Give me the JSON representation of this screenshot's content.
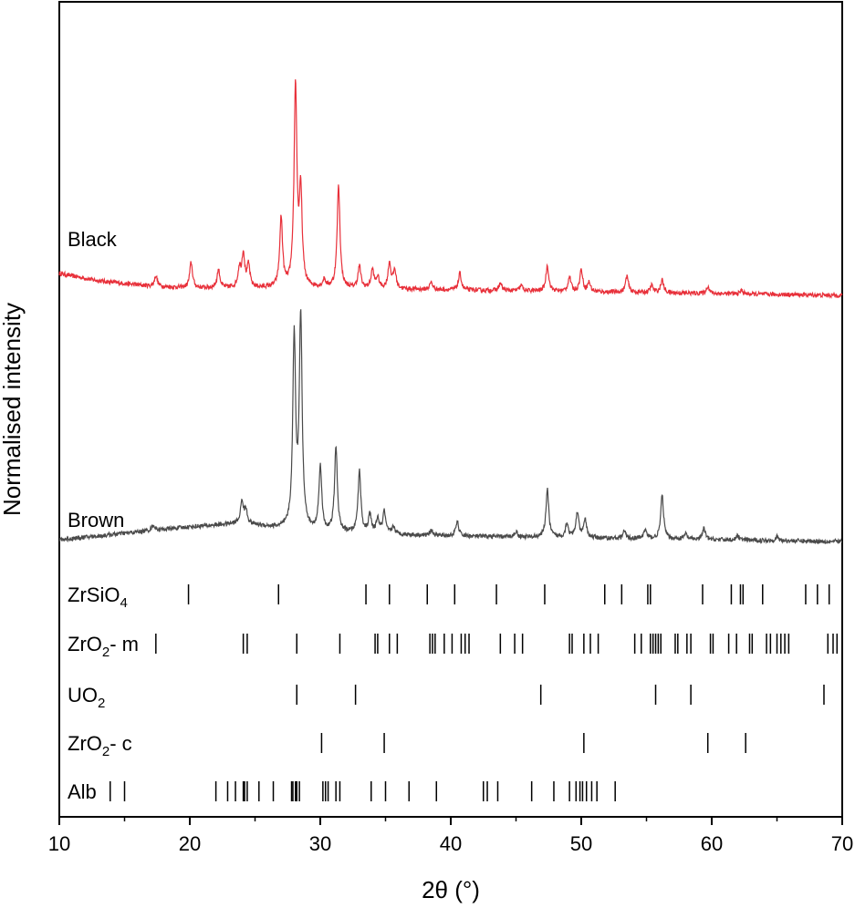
{
  "chart_data": {
    "type": "line",
    "xlabel": "2θ (°)",
    "ylabel": "Normalised intensity",
    "xlim": [
      10,
      70
    ],
    "x_ticks": [
      10,
      20,
      30,
      40,
      50,
      60,
      70
    ],
    "y_axis_ticks": "none",
    "grid": false,
    "series": [
      {
        "name": "Black",
        "color": "#e8303a",
        "baseline_intensity": 0.73,
        "background": [
          [
            10,
            0.73
          ],
          [
            13,
            0.71
          ],
          [
            17,
            0.695
          ],
          [
            20,
            0.69
          ],
          [
            25,
            0.69
          ],
          [
            30,
            0.69
          ],
          [
            40,
            0.685
          ],
          [
            50,
            0.68
          ],
          [
            60,
            0.675
          ],
          [
            70,
            0.67
          ]
        ],
        "peaks": [
          {
            "x": 17.4,
            "h": 0.03
          },
          {
            "x": 20.1,
            "h": 0.07
          },
          {
            "x": 22.2,
            "h": 0.05
          },
          {
            "x": 23.8,
            "h": 0.05
          },
          {
            "x": 24.1,
            "h": 0.09
          },
          {
            "x": 24.5,
            "h": 0.06
          },
          {
            "x": 27.0,
            "h": 0.19
          },
          {
            "x": 28.1,
            "h": 0.55
          },
          {
            "x": 28.5,
            "h": 0.25
          },
          {
            "x": 30.3,
            "h": 0.02
          },
          {
            "x": 31.4,
            "h": 0.28
          },
          {
            "x": 33.0,
            "h": 0.06
          },
          {
            "x": 34.0,
            "h": 0.05
          },
          {
            "x": 34.4,
            "h": 0.03
          },
          {
            "x": 35.3,
            "h": 0.07
          },
          {
            "x": 35.7,
            "h": 0.05
          },
          {
            "x": 38.5,
            "h": 0.02
          },
          {
            "x": 40.7,
            "h": 0.045
          },
          {
            "x": 43.8,
            "h": 0.02
          },
          {
            "x": 45.4,
            "h": 0.015
          },
          {
            "x": 47.4,
            "h": 0.07
          },
          {
            "x": 49.1,
            "h": 0.04
          },
          {
            "x": 50.0,
            "h": 0.06
          },
          {
            "x": 50.6,
            "h": 0.025
          },
          {
            "x": 53.5,
            "h": 0.045
          },
          {
            "x": 55.4,
            "h": 0.02
          },
          {
            "x": 56.2,
            "h": 0.035
          },
          {
            "x": 59.7,
            "h": 0.02
          },
          {
            "x": 62.3,
            "h": 0.01
          }
        ]
      },
      {
        "name": "Brown",
        "color": "#4a4a4a",
        "baseline_intensity": 0.0,
        "background": [
          [
            10,
            0.0
          ],
          [
            13,
            0.01
          ],
          [
            17,
            0.025
          ],
          [
            20,
            0.035
          ],
          [
            24,
            0.045
          ],
          [
            27,
            0.03
          ],
          [
            30,
            0.02
          ],
          [
            40,
            0.01
          ],
          [
            50,
            0.005
          ],
          [
            60,
            0.0
          ],
          [
            70,
            -0.005
          ]
        ],
        "peaks": [
          {
            "x": 17.2,
            "h": 0.015
          },
          {
            "x": 24.0,
            "h": 0.06
          },
          {
            "x": 24.3,
            "h": 0.035
          },
          {
            "x": 28.0,
            "h": 0.52
          },
          {
            "x": 28.5,
            "h": 0.58
          },
          {
            "x": 30.0,
            "h": 0.18
          },
          {
            "x": 31.2,
            "h": 0.23
          },
          {
            "x": 33.0,
            "h": 0.17
          },
          {
            "x": 33.8,
            "h": 0.05
          },
          {
            "x": 34.4,
            "h": 0.04
          },
          {
            "x": 34.9,
            "h": 0.06
          },
          {
            "x": 35.6,
            "h": 0.02
          },
          {
            "x": 38.5,
            "h": 0.015
          },
          {
            "x": 40.5,
            "h": 0.04
          },
          {
            "x": 45.0,
            "h": 0.015
          },
          {
            "x": 47.4,
            "h": 0.13
          },
          {
            "x": 48.9,
            "h": 0.04
          },
          {
            "x": 49.7,
            "h": 0.07
          },
          {
            "x": 50.3,
            "h": 0.05
          },
          {
            "x": 53.3,
            "h": 0.02
          },
          {
            "x": 54.9,
            "h": 0.025
          },
          {
            "x": 56.2,
            "h": 0.12
          },
          {
            "x": 58.0,
            "h": 0.015
          },
          {
            "x": 59.4,
            "h": 0.03
          },
          {
            "x": 62.0,
            "h": 0.012
          },
          {
            "x": 65.0,
            "h": 0.01
          }
        ]
      }
    ],
    "reference_phases": [
      {
        "name": "ZrSiO",
        "sub": "4",
        "lines": [
          19.9,
          26.8,
          33.5,
          35.3,
          38.2,
          40.3,
          43.5,
          47.2,
          51.8,
          53.1,
          55.1,
          55.3,
          59.3,
          61.5,
          62.2,
          62.4,
          63.9,
          67.2,
          68.1,
          69.0
        ]
      },
      {
        "name": "ZrO",
        "sub": "2",
        "suffix": "- m",
        "lines": [
          17.4,
          24.1,
          24.4,
          28.2,
          31.5,
          34.2,
          34.4,
          35.3,
          35.9,
          38.4,
          38.6,
          38.8,
          39.5,
          40.1,
          40.8,
          41.1,
          41.4,
          43.8,
          44.9,
          45.5,
          49.1,
          49.3,
          50.2,
          50.7,
          51.3,
          54.1,
          54.6,
          55.3,
          55.5,
          55.7,
          55.9,
          56.1,
          57.2,
          57.4,
          58.1,
          58.4,
          59.9,
          60.1,
          61.3,
          61.9,
          62.9,
          63.1,
          64.2,
          64.5,
          65.0,
          65.3,
          65.6,
          65.9,
          68.9,
          69.3,
          69.6
        ]
      },
      {
        "name": "UO",
        "sub": "2",
        "lines": [
          28.2,
          32.7,
          46.9,
          55.7,
          58.4,
          68.6
        ]
      },
      {
        "name": "ZrO",
        "sub": "2",
        "suffix": "- c",
        "lines": [
          30.1,
          34.9,
          50.2,
          59.7,
          62.6
        ]
      },
      {
        "name": "Alb",
        "sub": "",
        "lines": [
          13.9,
          15.0,
          22.0,
          22.9,
          23.5,
          24.1,
          24.2,
          24.4,
          25.3,
          26.4,
          27.8,
          27.9,
          28.1,
          28.2,
          28.4,
          30.2,
          30.4,
          30.6,
          31.2,
          31.5,
          33.9,
          35.0,
          36.8,
          38.9,
          42.5,
          42.8,
          43.6,
          46.2,
          47.9,
          49.1,
          49.6,
          49.9,
          50.1,
          50.4,
          50.8,
          51.2,
          52.6
        ]
      }
    ]
  }
}
